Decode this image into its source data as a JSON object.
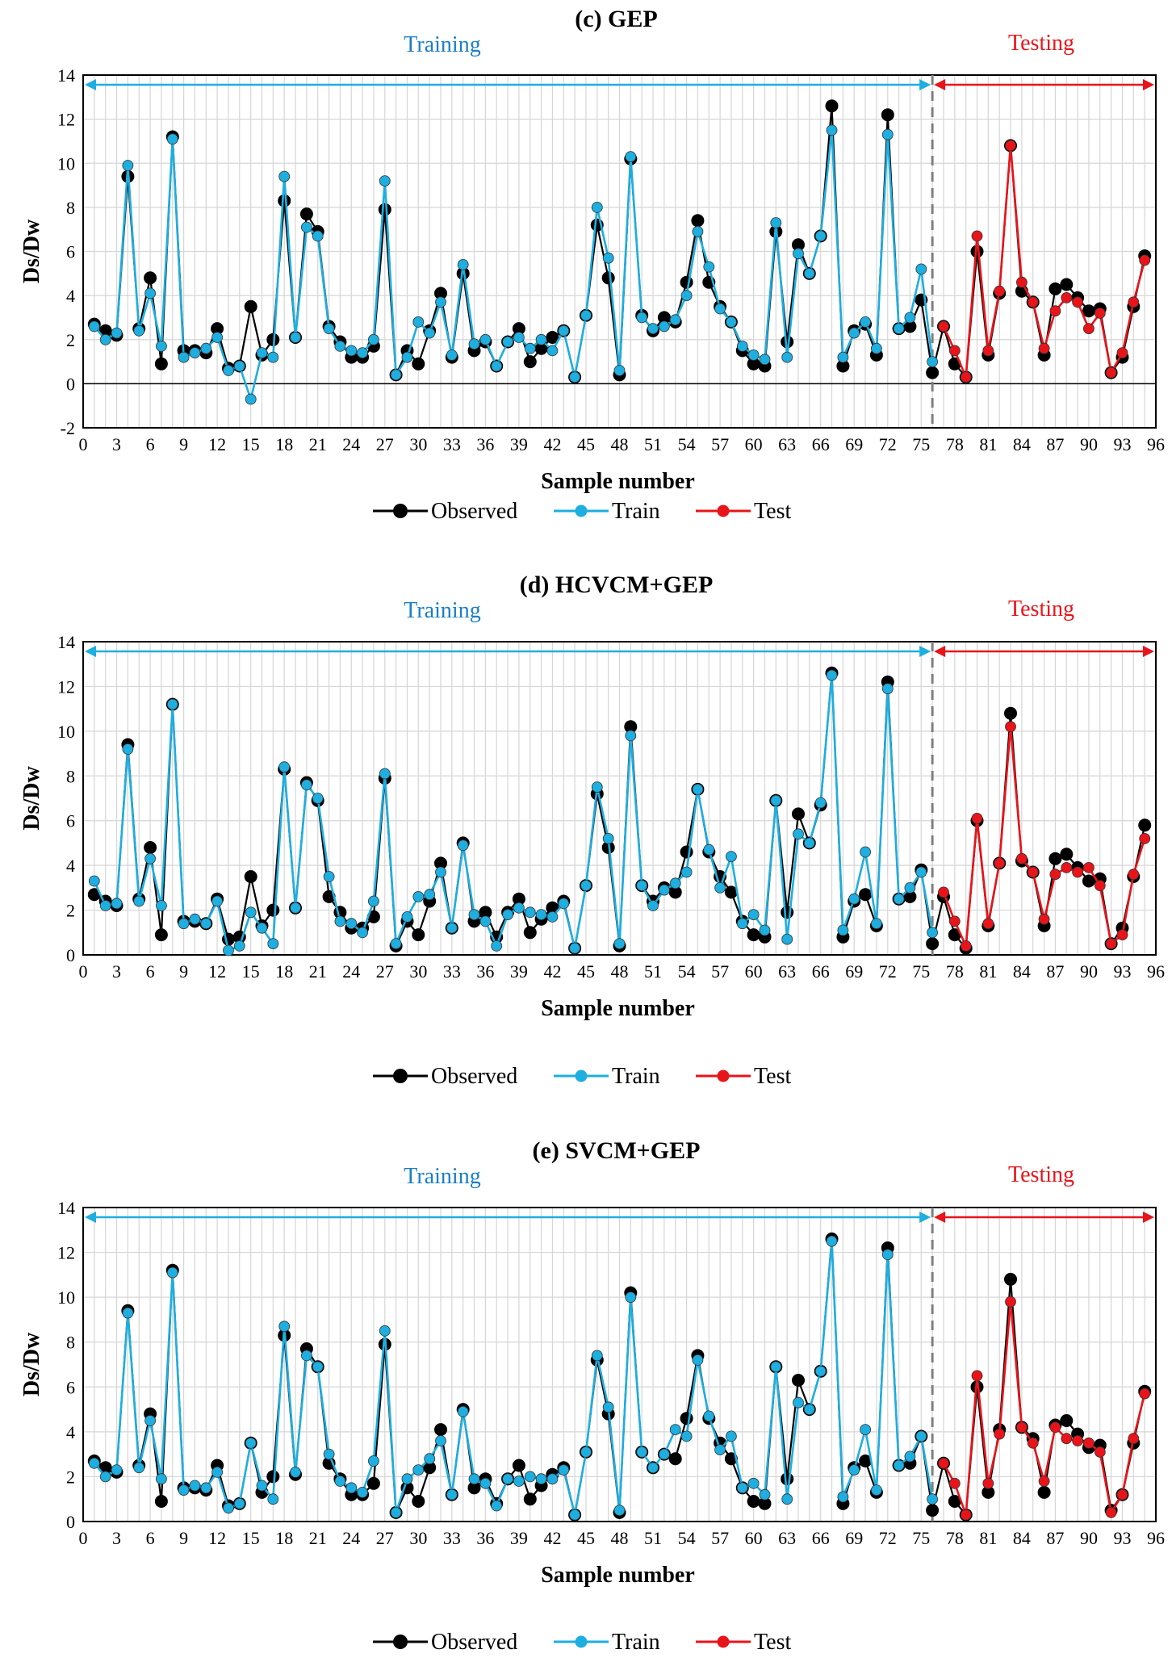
{
  "colors": {
    "observed": "#000000",
    "train": "#1eaee0",
    "test": "#e8141a",
    "training_label": "#1a7ec8",
    "testing_label": "#e8141a",
    "arrow_train": "#1eaee0",
    "arrow_test": "#e8141a",
    "grid": "#d6d6d6",
    "divider": "#808080"
  },
  "legend": {
    "observed": "Observed",
    "train": "Train",
    "test": "Test"
  },
  "chart_data": [
    {
      "type": "line",
      "title": "(c) GEP",
      "xlabel": "Sample number",
      "ylabel": "Ds/Dw",
      "xlim": [
        0,
        96
      ],
      "ylim": [
        -2,
        14
      ],
      "xticks": [
        0,
        3,
        6,
        9,
        12,
        15,
        18,
        21,
        24,
        27,
        30,
        33,
        36,
        39,
        42,
        45,
        48,
        51,
        54,
        57,
        60,
        63,
        66,
        69,
        72,
        75,
        78,
        81,
        84,
        87,
        90,
        93,
        96
      ],
      "yticks": [
        -2,
        0,
        2,
        4,
        6,
        8,
        10,
        12,
        14
      ],
      "region_labels": {
        "training": "Training",
        "testing": "Testing"
      },
      "split_x": 76,
      "grid": true,
      "legend_position": "bottom",
      "series": [
        {
          "name": "Observed",
          "x_start": 1,
          "values": [
            2.7,
            2.4,
            2.2,
            9.4,
            2.5,
            4.8,
            0.9,
            11.2,
            1.5,
            1.5,
            1.4,
            2.5,
            0.7,
            0.8,
            3.5,
            1.3,
            2.0,
            8.3,
            2.1,
            7.7,
            6.9,
            2.6,
            1.9,
            1.2,
            1.2,
            1.7,
            7.9,
            0.4,
            1.5,
            0.9,
            2.4,
            4.1,
            1.2,
            5.0,
            1.5,
            1.9,
            0.8,
            1.9,
            2.5,
            1.0,
            1.6,
            2.1,
            2.4,
            0.3,
            3.1,
            7.2,
            4.8,
            0.4,
            10.2,
            3.1,
            2.4,
            3.0,
            2.8,
            4.6,
            7.4,
            4.6,
            3.5,
            2.8,
            1.5,
            0.9,
            0.8,
            6.9,
            1.9,
            6.3,
            5.0,
            6.7,
            12.6,
            0.8,
            2.4,
            2.7,
            1.3,
            12.2,
            2.5,
            2.6,
            3.8,
            0.5,
            2.6,
            0.9,
            0.3,
            6.0,
            1.3,
            4.1,
            10.8,
            4.2,
            3.7,
            1.3,
            4.3,
            4.5,
            3.9,
            3.3,
            3.4,
            0.5,
            1.2,
            3.5,
            5.8
          ]
        },
        {
          "name": "Train",
          "x_start": 1,
          "values": [
            2.6,
            2.0,
            2.3,
            9.9,
            2.4,
            4.1,
            1.7,
            11.1,
            1.2,
            1.4,
            1.6,
            2.1,
            0.6,
            0.8,
            -0.7,
            1.4,
            1.2,
            9.4,
            2.1,
            7.1,
            6.7,
            2.5,
            1.7,
            1.5,
            1.4,
            2.0,
            9.2,
            0.4,
            1.2,
            2.8,
            2.3,
            3.7,
            1.3,
            5.4,
            1.8,
            2.0,
            0.8,
            1.9,
            2.1,
            1.6,
            2.0,
            1.5,
            2.4,
            0.3,
            3.1,
            8.0,
            5.7,
            0.6,
            10.3,
            3.0,
            2.5,
            2.6,
            2.9,
            4.0,
            6.9,
            5.3,
            3.4,
            2.8,
            1.7,
            1.3,
            1.1,
            7.3,
            1.2,
            5.9,
            5.0,
            6.7,
            11.5,
            1.2,
            2.3,
            2.8,
            1.6,
            11.3,
            2.5,
            3.0,
            5.2,
            1.0
          ]
        },
        {
          "name": "Test",
          "x_start": 77,
          "values": [
            2.6,
            1.5,
            0.3,
            6.7,
            1.5,
            4.2,
            10.8,
            4.6,
            3.7,
            1.6,
            3.3,
            3.9,
            3.7,
            2.5,
            3.2,
            0.5,
            1.4,
            3.7,
            5.6
          ]
        }
      ]
    },
    {
      "type": "line",
      "title": "(d) HCVCM+GEP",
      "xlabel": "Sample number",
      "ylabel": "Ds/Dw",
      "xlim": [
        0,
        96
      ],
      "ylim": [
        0,
        14
      ],
      "xticks": [
        0,
        3,
        6,
        9,
        12,
        15,
        18,
        21,
        24,
        27,
        30,
        33,
        36,
        39,
        42,
        45,
        48,
        51,
        54,
        57,
        60,
        63,
        66,
        69,
        72,
        75,
        78,
        81,
        84,
        87,
        90,
        93,
        96
      ],
      "yticks": [
        0,
        2,
        4,
        6,
        8,
        10,
        12,
        14
      ],
      "region_labels": {
        "training": "Training",
        "testing": "Testing"
      },
      "split_x": 76,
      "grid": true,
      "legend_position": "bottom",
      "series": [
        {
          "name": "Observed",
          "x_start": 1,
          "values": [
            2.7,
            2.4,
            2.2,
            9.4,
            2.5,
            4.8,
            0.9,
            11.2,
            1.5,
            1.5,
            1.4,
            2.5,
            0.7,
            0.8,
            3.5,
            1.3,
            2.0,
            8.3,
            2.1,
            7.7,
            6.9,
            2.6,
            1.9,
            1.2,
            1.2,
            1.7,
            7.9,
            0.4,
            1.5,
            0.9,
            2.4,
            4.1,
            1.2,
            5.0,
            1.5,
            1.9,
            0.8,
            1.9,
            2.5,
            1.0,
            1.6,
            2.1,
            2.4,
            0.3,
            3.1,
            7.2,
            4.8,
            0.4,
            10.2,
            3.1,
            2.4,
            3.0,
            2.8,
            4.6,
            7.4,
            4.6,
            3.5,
            2.8,
            1.5,
            0.9,
            0.8,
            6.9,
            1.9,
            6.3,
            5.0,
            6.7,
            12.6,
            0.8,
            2.4,
            2.7,
            1.3,
            12.2,
            2.5,
            2.6,
            3.8,
            0.5,
            2.6,
            0.9,
            0.3,
            6.0,
            1.3,
            4.1,
            10.8,
            4.2,
            3.7,
            1.3,
            4.3,
            4.5,
            3.9,
            3.3,
            3.4,
            0.5,
            1.2,
            3.5,
            5.8
          ]
        },
        {
          "name": "Train",
          "x_start": 1,
          "values": [
            3.3,
            2.2,
            2.3,
            9.2,
            2.4,
            4.3,
            2.2,
            11.2,
            1.4,
            1.6,
            1.4,
            2.4,
            0.2,
            0.4,
            1.9,
            1.2,
            0.5,
            8.4,
            2.1,
            7.6,
            7.0,
            3.5,
            1.5,
            1.4,
            1.0,
            2.4,
            8.1,
            0.5,
            1.7,
            2.6,
            2.7,
            3.7,
            1.2,
            4.9,
            1.8,
            1.5,
            0.4,
            1.8,
            2.1,
            1.9,
            1.8,
            1.7,
            2.3,
            0.3,
            3.1,
            7.5,
            5.2,
            0.5,
            9.8,
            3.1,
            2.2,
            2.9,
            3.2,
            3.7,
            7.4,
            4.7,
            3.0,
            4.4,
            1.4,
            1.8,
            1.1,
            6.9,
            0.7,
            5.4,
            5.0,
            6.8,
            12.5,
            1.1,
            2.5,
            4.6,
            1.4,
            11.9,
            2.5,
            3.0,
            3.7,
            1.0
          ]
        },
        {
          "name": "Test",
          "x_start": 77,
          "values": [
            2.8,
            1.5,
            0.4,
            6.1,
            1.4,
            4.1,
            10.2,
            4.3,
            3.7,
            1.6,
            3.6,
            3.9,
            3.7,
            3.9,
            3.1,
            0.5,
            0.9,
            3.6,
            5.2
          ]
        }
      ]
    },
    {
      "type": "line",
      "title": "(e) SVCM+GEP",
      "xlabel": "Sample number",
      "ylabel": "Ds/Dw",
      "xlim": [
        0,
        96
      ],
      "ylim": [
        0,
        14
      ],
      "xticks": [
        0,
        3,
        6,
        9,
        12,
        15,
        18,
        21,
        24,
        27,
        30,
        33,
        36,
        39,
        42,
        45,
        48,
        51,
        54,
        57,
        60,
        63,
        66,
        69,
        72,
        75,
        78,
        81,
        84,
        87,
        90,
        93,
        96
      ],
      "yticks": [
        0,
        2,
        4,
        6,
        8,
        10,
        12,
        14
      ],
      "region_labels": {
        "training": "Training",
        "testing": "Testing"
      },
      "split_x": 76,
      "grid": true,
      "legend_position": "bottom",
      "series": [
        {
          "name": "Observed",
          "x_start": 1,
          "values": [
            2.7,
            2.4,
            2.2,
            9.4,
            2.5,
            4.8,
            0.9,
            11.2,
            1.5,
            1.5,
            1.4,
            2.5,
            0.7,
            0.8,
            3.5,
            1.3,
            2.0,
            8.3,
            2.1,
            7.7,
            6.9,
            2.6,
            1.9,
            1.2,
            1.2,
            1.7,
            7.9,
            0.4,
            1.5,
            0.9,
            2.4,
            4.1,
            1.2,
            5.0,
            1.5,
            1.9,
            0.8,
            1.9,
            2.5,
            1.0,
            1.6,
            2.1,
            2.4,
            0.3,
            3.1,
            7.2,
            4.8,
            0.4,
            10.2,
            3.1,
            2.4,
            3.0,
            2.8,
            4.6,
            7.4,
            4.6,
            3.5,
            2.8,
            1.5,
            0.9,
            0.8,
            6.9,
            1.9,
            6.3,
            5.0,
            6.7,
            12.6,
            0.8,
            2.4,
            2.7,
            1.3,
            12.2,
            2.5,
            2.6,
            3.8,
            0.5,
            2.6,
            0.9,
            0.3,
            6.0,
            1.3,
            4.1,
            10.8,
            4.2,
            3.7,
            1.3,
            4.3,
            4.5,
            3.9,
            3.3,
            3.4,
            0.5,
            1.2,
            3.5,
            5.8
          ]
        },
        {
          "name": "Train",
          "x_start": 1,
          "values": [
            2.6,
            2.0,
            2.3,
            9.3,
            2.4,
            4.5,
            1.9,
            11.1,
            1.4,
            1.6,
            1.5,
            2.2,
            0.6,
            0.8,
            3.5,
            1.6,
            1.0,
            8.7,
            2.2,
            7.4,
            6.9,
            3.0,
            1.8,
            1.5,
            1.3,
            2.7,
            8.5,
            0.4,
            1.9,
            2.3,
            2.8,
            3.6,
            1.2,
            4.9,
            1.9,
            1.7,
            0.7,
            1.9,
            1.8,
            2.0,
            1.9,
            1.9,
            2.3,
            0.3,
            3.1,
            7.4,
            5.1,
            0.5,
            10.0,
            3.1,
            2.4,
            3.0,
            4.1,
            3.8,
            7.2,
            4.7,
            3.2,
            3.8,
            1.5,
            1.7,
            1.2,
            6.9,
            1.0,
            5.3,
            5.0,
            6.7,
            12.5,
            1.1,
            2.3,
            4.1,
            1.4,
            11.9,
            2.5,
            2.9,
            3.8,
            1.0
          ]
        },
        {
          "name": "Test",
          "x_start": 77,
          "values": [
            2.6,
            1.7,
            0.3,
            6.5,
            1.7,
            3.9,
            9.8,
            4.2,
            3.5,
            1.8,
            4.2,
            3.7,
            3.6,
            3.5,
            3.1,
            0.4,
            1.2,
            3.7,
            5.7
          ]
        }
      ]
    }
  ]
}
